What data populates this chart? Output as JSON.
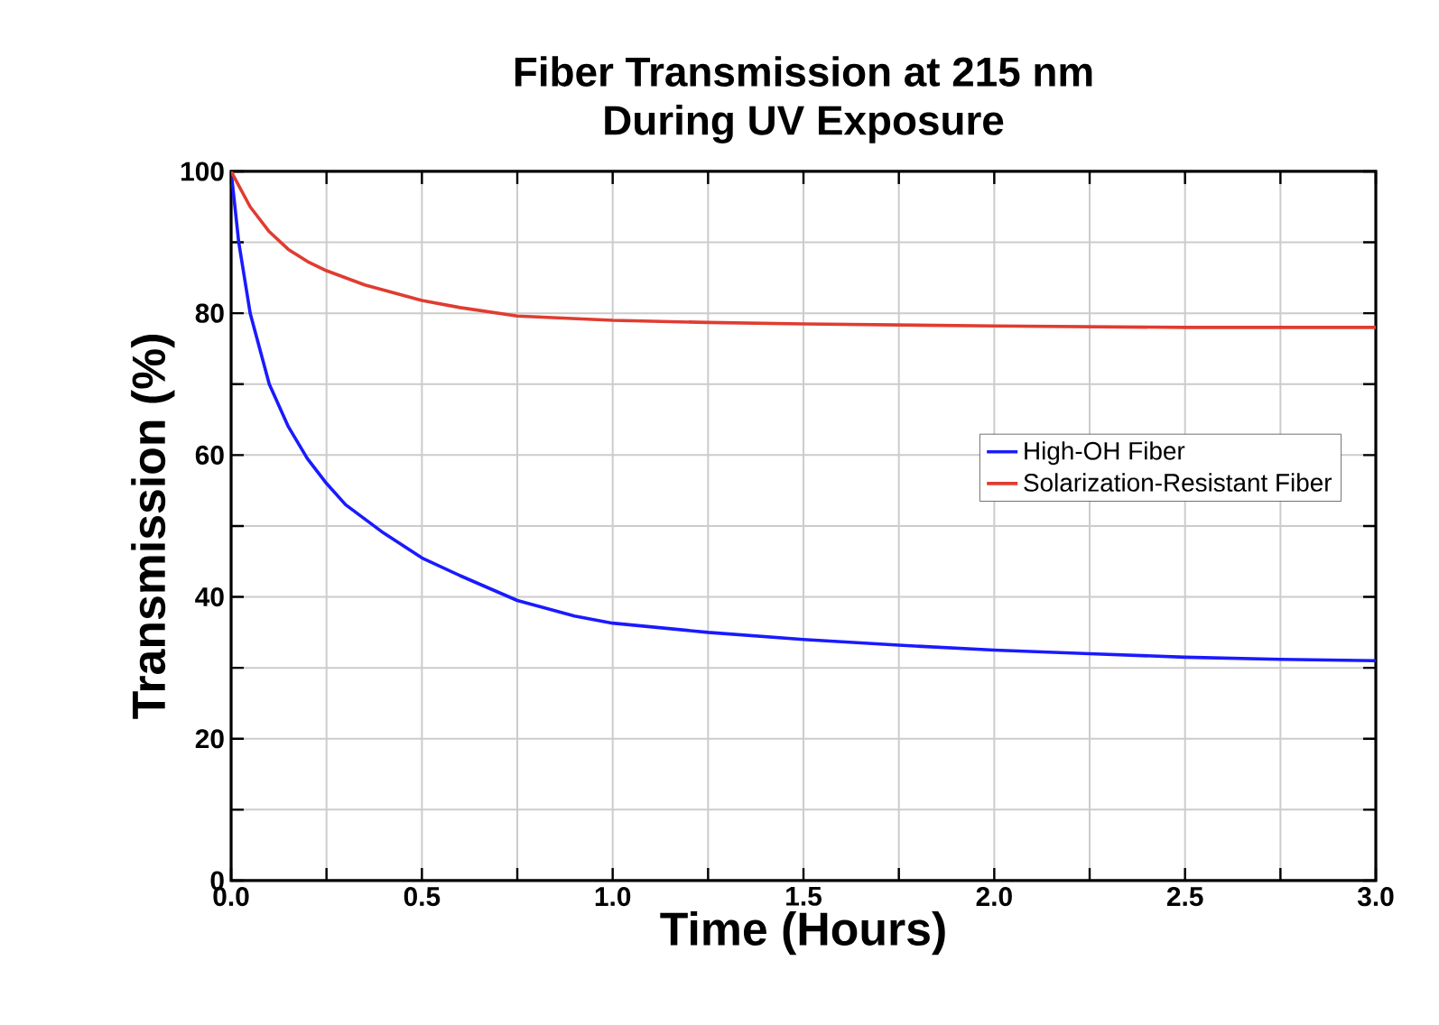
{
  "chart_data": {
    "type": "line",
    "title": "Fiber Transmission at 215 nm\nDuring UV Exposure",
    "xlabel": "Time (Hours)",
    "ylabel": "Transmission (%)",
    "xlim": [
      0,
      3
    ],
    "ylim": [
      0,
      100
    ],
    "xticks": [
      {
        "value": 0,
        "label": "0.0"
      },
      {
        "value": 0.25,
        "label": null
      },
      {
        "value": 0.5,
        "label": "0.5"
      },
      {
        "value": 0.75,
        "label": null
      },
      {
        "value": 1,
        "label": "1.0"
      },
      {
        "value": 1.25,
        "label": null
      },
      {
        "value": 1.5,
        "label": "1.5"
      },
      {
        "value": 1.75,
        "label": null
      },
      {
        "value": 2,
        "label": "2.0"
      },
      {
        "value": 2.25,
        "label": null
      },
      {
        "value": 2.5,
        "label": "2.5"
      },
      {
        "value": 2.75,
        "label": null
      },
      {
        "value": 3,
        "label": "3.0"
      }
    ],
    "yticks": [
      0,
      {
        "value": 10,
        "label": null
      },
      20,
      {
        "value": 30,
        "label": null
      },
      40,
      {
        "value": 50,
        "label": null
      },
      60,
      {
        "value": 70,
        "label": null
      },
      80,
      {
        "value": 90,
        "label": null
      },
      100
    ],
    "grid": true,
    "legend": "right",
    "marker": "none",
    "line_style": "solid",
    "series": [
      {
        "name": "High-OH Fiber",
        "color": "#1a1aff",
        "x": [
          0,
          0.02,
          0.05,
          0.1,
          0.15,
          0.2,
          0.25,
          0.3,
          0.4,
          0.5,
          0.6,
          0.75,
          0.9,
          1.0,
          1.25,
          1.5,
          1.75,
          2.0,
          2.25,
          2.5,
          2.75,
          3.0
        ],
        "values": [
          100,
          90,
          80,
          70,
          64,
          59.5,
          56,
          53,
          49,
          45.5,
          43,
          39.5,
          37.3,
          36.3,
          35,
          34,
          33.2,
          32.5,
          32,
          31.5,
          31.2,
          31
        ]
      },
      {
        "name": "Solarization-Resistant Fiber",
        "color": "#e03c31",
        "x": [
          0,
          0.05,
          0.1,
          0.15,
          0.2,
          0.25,
          0.35,
          0.5,
          0.6,
          0.75,
          1.0,
          1.25,
          1.5,
          2.0,
          2.5,
          3.0
        ],
        "values": [
          100,
          95,
          91.5,
          89,
          87.3,
          86,
          84,
          81.8,
          80.8,
          79.6,
          79,
          78.7,
          78.5,
          78.2,
          78,
          78
        ]
      }
    ]
  }
}
